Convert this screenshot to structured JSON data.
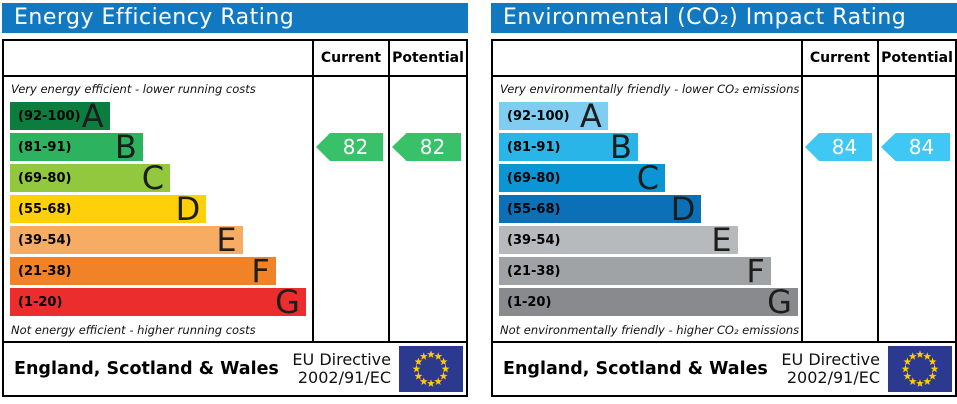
{
  "colors": {
    "header_bar": "#1279c0",
    "border": "#000000",
    "flag_blue": "#2b3a8f",
    "flag_star": "#ffcc00"
  },
  "chart_data": [
    {
      "type": "bar",
      "title": "Energy Efficiency Rating",
      "column_headers": {
        "current": "Current",
        "potential": "Potential"
      },
      "top_note": "Very energy efficient - lower running costs",
      "bottom_note": "Not energy efficient - higher running costs",
      "bands": [
        {
          "letter": "A",
          "range": "(92-100)",
          "min": 92,
          "max": 100,
          "color": "#0b7e3f",
          "width_pct": 33
        },
        {
          "letter": "B",
          "range": "(81-91)",
          "min": 81,
          "max": 91,
          "color": "#2db35f",
          "width_pct": 44
        },
        {
          "letter": "C",
          "range": "(69-80)",
          "min": 69,
          "max": 80,
          "color": "#92c83e",
          "width_pct": 53
        },
        {
          "letter": "D",
          "range": "(55-68)",
          "min": 55,
          "max": 68,
          "color": "#fdd009",
          "width_pct": 65
        },
        {
          "letter": "E",
          "range": "(39-54)",
          "min": 39,
          "max": 54,
          "color": "#f6ad63",
          "width_pct": 77
        },
        {
          "letter": "F",
          "range": "(21-38)",
          "min": 21,
          "max": 38,
          "color": "#f08228",
          "width_pct": 88
        },
        {
          "letter": "G",
          "range": "(1-20)",
          "min": 1,
          "max": 20,
          "color": "#eb2d2e",
          "width_pct": 98
        }
      ],
      "current": {
        "value": 82,
        "band": "B",
        "color": "#38c169"
      },
      "potential": {
        "value": 82,
        "band": "B",
        "color": "#38c169"
      },
      "footer": {
        "region": "England, Scotland & Wales",
        "directive_line1": "EU Directive",
        "directive_line2": "2002/91/EC"
      }
    },
    {
      "type": "bar",
      "title": "Environmental (CO₂) Impact Rating",
      "column_headers": {
        "current": "Current",
        "potential": "Potential"
      },
      "top_note": "Very environmentally friendly - lower CO₂ emissions",
      "bottom_note": "Not environmentally friendly - higher CO₂ emissions",
      "bands": [
        {
          "letter": "A",
          "range": "(92-100)",
          "min": 92,
          "max": 100,
          "color": "#7fcdf0",
          "width_pct": 36
        },
        {
          "letter": "B",
          "range": "(81-91)",
          "min": 81,
          "max": 91,
          "color": "#2ab5e9",
          "width_pct": 46
        },
        {
          "letter": "C",
          "range": "(69-80)",
          "min": 69,
          "max": 80,
          "color": "#0b95d5",
          "width_pct": 55
        },
        {
          "letter": "D",
          "range": "(55-68)",
          "min": 55,
          "max": 68,
          "color": "#0b70b7",
          "width_pct": 67
        },
        {
          "letter": "E",
          "range": "(39-54)",
          "min": 39,
          "max": 54,
          "color": "#b7babc",
          "width_pct": 79
        },
        {
          "letter": "F",
          "range": "(21-38)",
          "min": 21,
          "max": 38,
          "color": "#a0a3a5",
          "width_pct": 90
        },
        {
          "letter": "G",
          "range": "(1-20)",
          "min": 1,
          "max": 20,
          "color": "#898a8d",
          "width_pct": 99
        }
      ],
      "current": {
        "value": 84,
        "band": "B",
        "color": "#3fc8f3"
      },
      "potential": {
        "value": 84,
        "band": "B",
        "color": "#3fc8f3"
      },
      "footer": {
        "region": "England, Scotland & Wales",
        "directive_line1": "EU Directive",
        "directive_line2": "2002/91/EC"
      }
    }
  ]
}
